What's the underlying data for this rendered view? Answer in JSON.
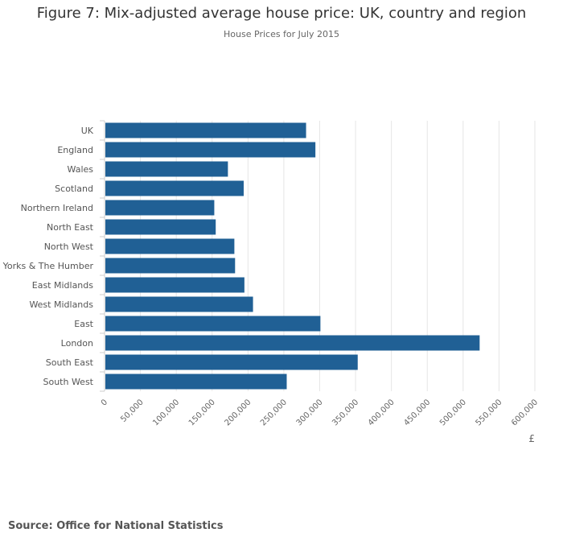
{
  "chart_data": {
    "type": "bar",
    "orientation": "horizontal",
    "title": "Figure 7: Mix-adjusted average house price: UK, country and region",
    "subtitle": "House Prices for July 2015",
    "xlabel": "£",
    "ylabel": "",
    "xlim": [
      0,
      600000
    ],
    "grid": true,
    "categories": [
      "UK",
      "England",
      "Wales",
      "Scotland",
      "Northern Ireland",
      "North East",
      "North West",
      "Yorks & The Humber",
      "East Midlands",
      "West Midlands",
      "East",
      "London",
      "South East",
      "South West"
    ],
    "values": [
      281000,
      294000,
      172000,
      194000,
      153000,
      155000,
      181000,
      182000,
      195000,
      207000,
      301000,
      523000,
      353000,
      254000
    ],
    "ticks": [
      {
        "value": 0,
        "label": "0"
      },
      {
        "value": 50000,
        "label": "50,000"
      },
      {
        "value": 100000,
        "label": "100,000"
      },
      {
        "value": 150000,
        "label": "150,000"
      },
      {
        "value": 200000,
        "label": "200,000"
      },
      {
        "value": 250000,
        "label": "250,000"
      },
      {
        "value": 300000,
        "label": "300,000"
      },
      {
        "value": 350000,
        "label": "350,000"
      },
      {
        "value": 400000,
        "label": "400,000"
      },
      {
        "value": 450000,
        "label": "450,000"
      },
      {
        "value": 500000,
        "label": "500,000"
      },
      {
        "value": 550000,
        "label": "550,000"
      },
      {
        "value": 600000,
        "label": "600,000"
      }
    ],
    "bar_color": "#206095"
  },
  "source": "Source: Office for National Statistics"
}
